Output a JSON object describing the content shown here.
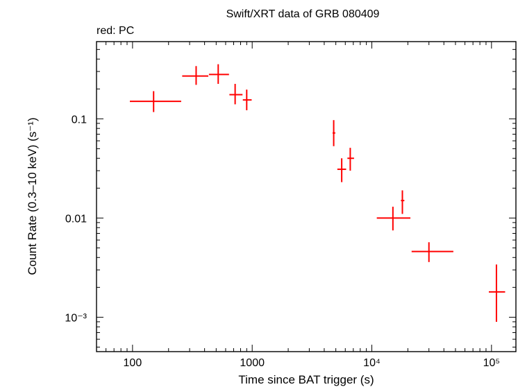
{
  "chart_data": {
    "type": "scatter",
    "title": "Swift/XRT data of GRB 080409",
    "subtitle": "red: PC",
    "xlabel": "Time since BAT trigger (s)",
    "ylabel": "Count Rate (0.3–10 keV) (s⁻¹)",
    "xscale": "log",
    "yscale": "log",
    "xlim": [
      50,
      160000
    ],
    "ylim": [
      0.00045,
      0.6
    ],
    "x_ticks": [
      {
        "value": 100,
        "label": "100"
      },
      {
        "value": 1000,
        "label": "1000"
      },
      {
        "value": 10000,
        "label": "10⁴"
      },
      {
        "value": 100000,
        "label": "10⁵"
      }
    ],
    "y_ticks": [
      {
        "value": 0.1,
        "label": "0.1"
      },
      {
        "value": 0.01,
        "label": "0.01"
      },
      {
        "value": 0.001,
        "label": "10⁻³"
      }
    ],
    "series": [
      {
        "name": "PC",
        "color": "#ff0000",
        "points": [
          {
            "x": 150,
            "xlo": 95,
            "xhi": 255,
            "y": 0.15,
            "ylo": 0.117,
            "yhi": 0.19
          },
          {
            "x": 340,
            "xlo": 260,
            "xhi": 430,
            "y": 0.27,
            "ylo": 0.22,
            "yhi": 0.34
          },
          {
            "x": 520,
            "xlo": 435,
            "xhi": 640,
            "y": 0.28,
            "ylo": 0.225,
            "yhi": 0.355
          },
          {
            "x": 720,
            "xlo": 645,
            "xhi": 830,
            "y": 0.175,
            "ylo": 0.14,
            "yhi": 0.225
          },
          {
            "x": 900,
            "xlo": 835,
            "xhi": 990,
            "y": 0.155,
            "ylo": 0.122,
            "yhi": 0.197
          },
          {
            "x": 4800,
            "xlo": 4700,
            "xhi": 4950,
            "y": 0.072,
            "ylo": 0.053,
            "yhi": 0.097
          },
          {
            "x": 5600,
            "xlo": 5150,
            "xhi": 6100,
            "y": 0.031,
            "ylo": 0.023,
            "yhi": 0.04
          },
          {
            "x": 6600,
            "xlo": 6250,
            "xhi": 7100,
            "y": 0.04,
            "ylo": 0.03,
            "yhi": 0.051
          },
          {
            "x": 15000,
            "xlo": 11000,
            "xhi": 21000,
            "y": 0.01,
            "ylo": 0.0075,
            "yhi": 0.013
          },
          {
            "x": 18000,
            "xlo": 17500,
            "xhi": 18700,
            "y": 0.015,
            "ylo": 0.011,
            "yhi": 0.019
          },
          {
            "x": 30000,
            "xlo": 21500,
            "xhi": 48000,
            "y": 0.0046,
            "ylo": 0.0036,
            "yhi": 0.0057
          },
          {
            "x": 110000,
            "xlo": 95000,
            "xhi": 130000,
            "y": 0.0018,
            "ylo": 0.0009,
            "yhi": 0.0034
          }
        ]
      }
    ]
  }
}
